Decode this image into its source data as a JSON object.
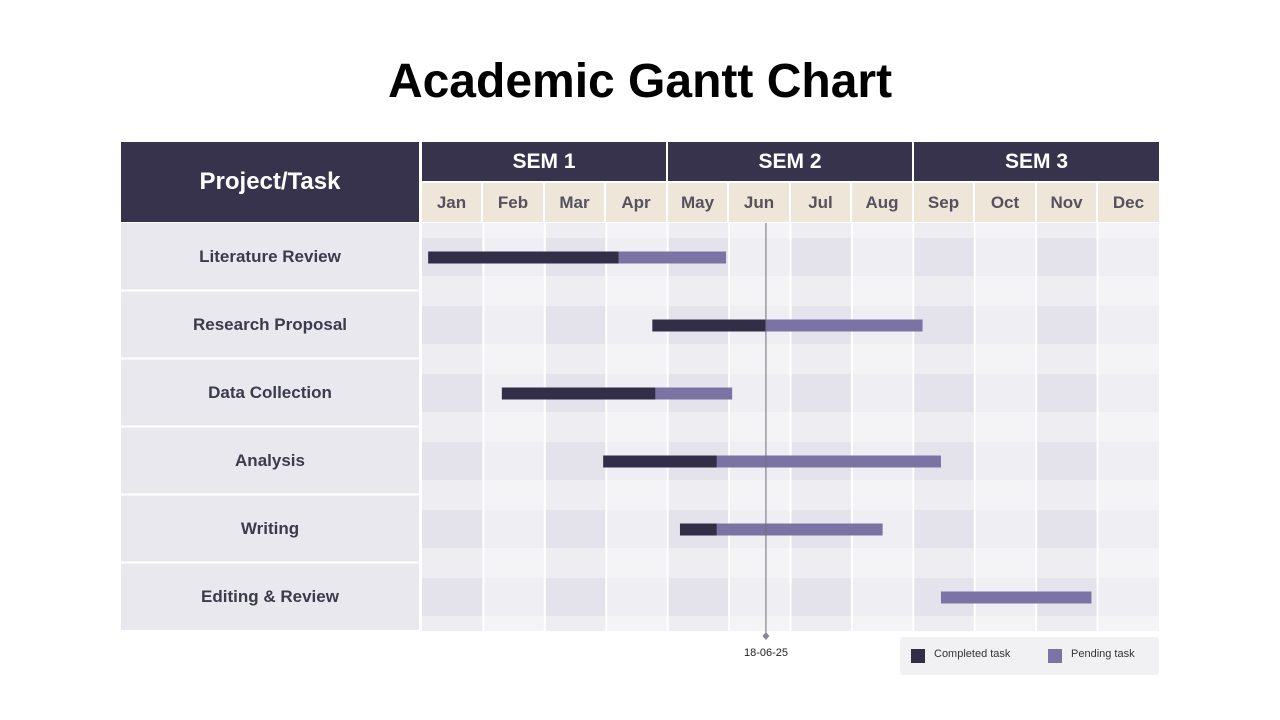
{
  "title": "Academic Gantt Chart",
  "header": {
    "project_task": "Project/Task"
  },
  "semesters": [
    "SEM 1",
    "SEM 2",
    "SEM 3"
  ],
  "months": [
    "Jan",
    "Feb",
    "Mar",
    "Apr",
    "May",
    "Jun",
    "Jul",
    "Aug",
    "Sep",
    "Oct",
    "Nov",
    "Dec"
  ],
  "legend": {
    "completed": "Completed task",
    "pending": "Pending task"
  },
  "today_marker": "18-06-25",
  "colors": {
    "header": "#37334d",
    "completed": "#322e48",
    "pending": "#7b73a4",
    "month_header": "#efe6da"
  },
  "chart_data": {
    "type": "gantt",
    "x_unit": "month",
    "x_range": [
      0,
      12
    ],
    "today": 5.6,
    "tasks": [
      {
        "name": "Literature Review",
        "start": 0.1,
        "completed_end": 3.2,
        "end": 4.95
      },
      {
        "name": "Research Proposal",
        "start": 3.75,
        "completed_end": 5.6,
        "end": 8.15
      },
      {
        "name": "Data Collection",
        "start": 1.3,
        "completed_end": 3.8,
        "end": 5.05
      },
      {
        "name": "Analysis",
        "start": 2.95,
        "completed_end": 4.8,
        "end": 8.45
      },
      {
        "name": "Writing",
        "start": 4.2,
        "completed_end": 4.8,
        "end": 7.5
      },
      {
        "name": "Editing & Review",
        "start": 8.45,
        "completed_end": 8.45,
        "end": 10.9
      }
    ]
  }
}
